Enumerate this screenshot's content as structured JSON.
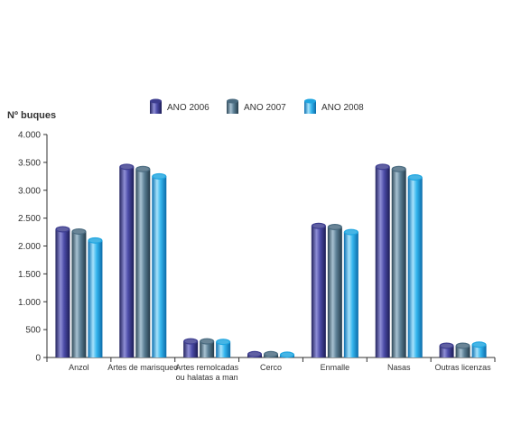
{
  "chart_data": {
    "type": "bar",
    "title": "",
    "xlabel": "",
    "ylabel": "Nº buques",
    "ylim": [
      0,
      4000
    ],
    "yticks": [
      0,
      500,
      1000,
      1500,
      2000,
      2500,
      3000,
      3500,
      4000
    ],
    "ytick_labels": [
      "0",
      "500",
      "1.000",
      "1.500",
      "2.000",
      "2.500",
      "3.000",
      "3.500",
      "4.000"
    ],
    "legend_position": "top-center",
    "grid": false,
    "categories": [
      [
        "Anzol"
      ],
      [
        "Artes de marisqueo"
      ],
      [
        "Artes remolcadas",
        "ou halatas a man"
      ],
      [
        "Cerco"
      ],
      [
        "Enmalle"
      ],
      [
        "Nasas"
      ],
      [
        "Outras licenzas"
      ]
    ],
    "series": [
      {
        "name": "ANO 2006",
        "color": "#3d3d8f",
        "values": [
          2300,
          3420,
          290,
          60,
          2360,
          3420,
          210
        ]
      },
      {
        "name": "ANO 2007",
        "color": "#4a6b80",
        "values": [
          2260,
          3380,
          290,
          60,
          2340,
          3380,
          210
        ]
      },
      {
        "name": "ANO 2008",
        "color": "#1ea5e0",
        "values": [
          2100,
          3250,
          280,
          50,
          2250,
          3230,
          230
        ]
      }
    ]
  }
}
